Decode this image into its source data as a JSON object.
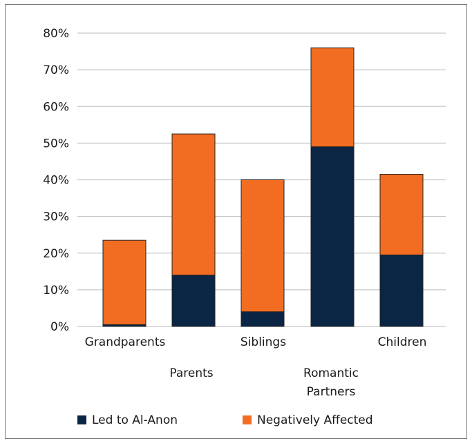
{
  "chart_data": {
    "type": "bar",
    "stacked": true,
    "categories": [
      "Grandparents",
      "Parents",
      "Siblings",
      "Romantic Partners",
      "Children"
    ],
    "series": [
      {
        "name": "Led to Al-Anon",
        "color": "#0b2545",
        "values": [
          0.5,
          14,
          4,
          49,
          19.5
        ]
      },
      {
        "name": "Negatively Affected",
        "color": "#f26d21",
        "values": [
          23,
          38.5,
          36,
          27,
          22
        ]
      }
    ],
    "y_ticks": [
      "0%",
      "10%",
      "20%",
      "30%",
      "40%",
      "50%",
      "60%",
      "70%",
      "80%"
    ],
    "ylim": [
      0,
      80
    ],
    "grid": true,
    "legend_position": "bottom",
    "title": "",
    "xlabel": "",
    "ylabel": ""
  }
}
